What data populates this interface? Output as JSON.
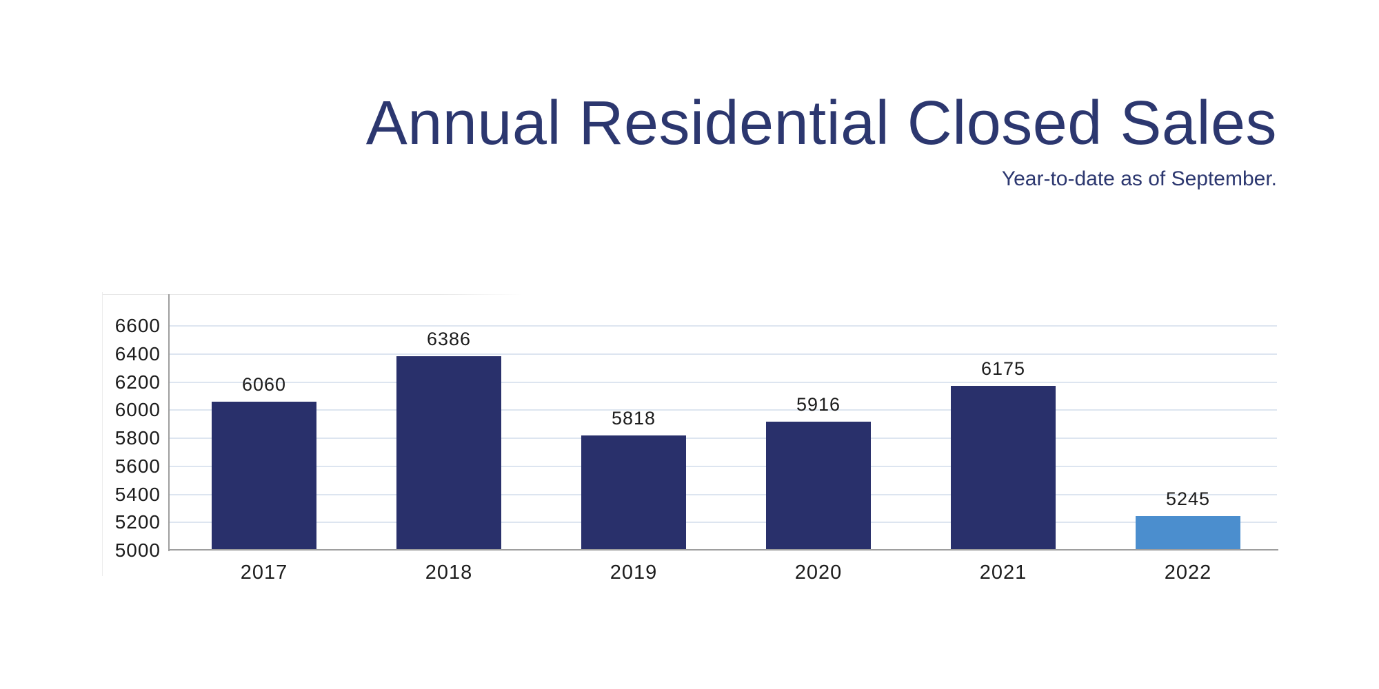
{
  "colors": {
    "title_navy": "#2C376F",
    "bar_navy": "#29306B",
    "bar_highlight_blue": "#4B8ECE",
    "gridline": "#DDE5F0",
    "axis_gray": "#9E9E9E",
    "tick_text": "#1C1C1C",
    "background": "#FFFFFF"
  },
  "chart_data": {
    "type": "bar",
    "title": "Annual Residential Closed Sales",
    "subtitle": "Year-to-date as of September.",
    "categories": [
      "2017",
      "2018",
      "2019",
      "2020",
      "2021",
      "2022"
    ],
    "values": [
      6060,
      6386,
      5818,
      5916,
      6175,
      5245
    ],
    "bar_colors": [
      "#29306B",
      "#29306B",
      "#29306B",
      "#29306B",
      "#29306B",
      "#4B8ECE"
    ],
    "value_labels": [
      "6060",
      "6386",
      "5818",
      "5916",
      "6175",
      "5245"
    ],
    "xlabel": "",
    "ylabel": "",
    "ylim": [
      5000,
      6600
    ],
    "yticks": [
      5000,
      5200,
      5400,
      5600,
      5800,
      6000,
      6200,
      6400,
      6600
    ],
    "grid": true,
    "legend": false,
    "value_labels_shown": true,
    "highlighted_category": "2022"
  }
}
